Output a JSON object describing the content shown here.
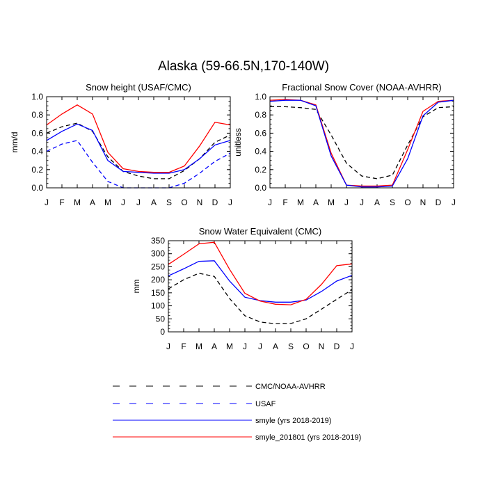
{
  "figure": {
    "title": "Alaska (59-66.5N,170-140W)"
  },
  "legend": {
    "items": [
      {
        "label": "CMC/NOAA-AVHRR",
        "color": "#000000",
        "dashed": true
      },
      {
        "label": "USAF",
        "color": "#0000ff",
        "dashed": true
      },
      {
        "label": "smyle (yrs 2018-2019)",
        "color": "#0000ff",
        "dashed": false
      },
      {
        "label": "smyle_201801 (yrs 2018-2019)",
        "color": "#ff0000",
        "dashed": false
      }
    ]
  },
  "chart_data": [
    {
      "type": "line",
      "title": "Snow height (USAF/CMC)",
      "xlabel": "",
      "ylabel": "mm/d",
      "categories": [
        "J",
        "F",
        "M",
        "A",
        "M",
        "J",
        "J",
        "A",
        "S",
        "O",
        "N",
        "D",
        "J"
      ],
      "ylim": [
        0,
        1.0
      ],
      "yticks": [
        0.0,
        0.2,
        0.4,
        0.6,
        0.8,
        1.0
      ],
      "ytick_labels": [
        "0.0",
        "0.2",
        "0.4",
        "0.6",
        "0.8",
        "1.0"
      ],
      "series": [
        {
          "name": "CMC/NOAA-AVHRR",
          "color": "#000000",
          "dashed": true,
          "values": [
            0.6,
            0.67,
            0.71,
            0.62,
            0.34,
            0.18,
            0.13,
            0.1,
            0.1,
            0.19,
            0.32,
            0.5,
            0.58
          ]
        },
        {
          "name": "USAF",
          "color": "#0000ff",
          "dashed": true,
          "values": [
            0.4,
            0.48,
            0.52,
            0.28,
            0.07,
            0.0,
            0.0,
            0.0,
            0.0,
            0.05,
            0.16,
            0.29,
            0.38
          ]
        },
        {
          "name": "smyle (yrs 2018-2019)",
          "color": "#0000ff",
          "dashed": false,
          "values": [
            0.52,
            0.62,
            0.7,
            0.63,
            0.3,
            0.18,
            0.17,
            0.16,
            0.16,
            0.2,
            0.32,
            0.47,
            0.52
          ]
        },
        {
          "name": "smyle_201801 (yrs 2018-2019)",
          "color": "#ff0000",
          "dashed": false,
          "values": [
            0.69,
            0.81,
            0.91,
            0.81,
            0.39,
            0.21,
            0.18,
            0.17,
            0.17,
            0.24,
            0.46,
            0.72,
            0.69
          ]
        }
      ]
    },
    {
      "type": "line",
      "title": "Fractional Snow Cover (NOAA-AVHRR)",
      "xlabel": "",
      "ylabel": "unitless",
      "categories": [
        "J",
        "F",
        "M",
        "A",
        "M",
        "J",
        "J",
        "A",
        "S",
        "O",
        "N",
        "D",
        "J"
      ],
      "ylim": [
        0,
        1.0
      ],
      "yticks": [
        0.0,
        0.2,
        0.4,
        0.6,
        0.8,
        1.0
      ],
      "ytick_labels": [
        "0.0",
        "0.2",
        "0.4",
        "0.6",
        "0.8",
        "1.0"
      ],
      "series": [
        {
          "name": "CMC/NOAA-AVHRR",
          "color": "#000000",
          "dashed": true,
          "values": [
            0.89,
            0.89,
            0.88,
            0.86,
            0.58,
            0.27,
            0.13,
            0.1,
            0.14,
            0.47,
            0.78,
            0.88,
            0.89
          ]
        },
        {
          "name": "smyle_201801 (yrs 2018-2019)",
          "color": "#ff0000",
          "dashed": false,
          "values": [
            0.96,
            0.97,
            0.96,
            0.91,
            0.38,
            0.03,
            0.02,
            0.02,
            0.03,
            0.42,
            0.84,
            0.95,
            0.96
          ]
        },
        {
          "name": "smyle (yrs 2018-2019)",
          "color": "#0000ff",
          "dashed": false,
          "values": [
            0.95,
            0.96,
            0.96,
            0.9,
            0.35,
            0.03,
            0.01,
            0.01,
            0.02,
            0.32,
            0.79,
            0.94,
            0.96
          ]
        }
      ]
    },
    {
      "type": "line",
      "title": "Snow Water Equivalent (CMC)",
      "xlabel": "",
      "ylabel": "mm",
      "categories": [
        "J",
        "F",
        "M",
        "A",
        "M",
        "J",
        "J",
        "A",
        "S",
        "O",
        "N",
        "D",
        "J"
      ],
      "ylim": [
        0,
        350
      ],
      "yticks": [
        0,
        50,
        100,
        150,
        200,
        250,
        300,
        350
      ],
      "ytick_labels": [
        "0",
        "50",
        "100",
        "150",
        "200",
        "250",
        "300",
        "350"
      ],
      "series": [
        {
          "name": "CMC/NOAA-AVHRR",
          "color": "#000000",
          "dashed": true,
          "values": [
            165,
            200,
            225,
            213,
            128,
            62,
            38,
            31,
            32,
            50,
            87,
            125,
            162
          ]
        },
        {
          "name": "smyle (yrs 2018-2019)",
          "color": "#0000ff",
          "dashed": false,
          "values": [
            215,
            242,
            271,
            273,
            195,
            133,
            120,
            114,
            114,
            122,
            155,
            195,
            217
          ]
        },
        {
          "name": "smyle_201801 (yrs 2018-2019)",
          "color": "#ff0000",
          "dashed": false,
          "values": [
            259,
            298,
            338,
            344,
            240,
            148,
            118,
            106,
            104,
            125,
            182,
            254,
            261
          ]
        }
      ]
    }
  ]
}
